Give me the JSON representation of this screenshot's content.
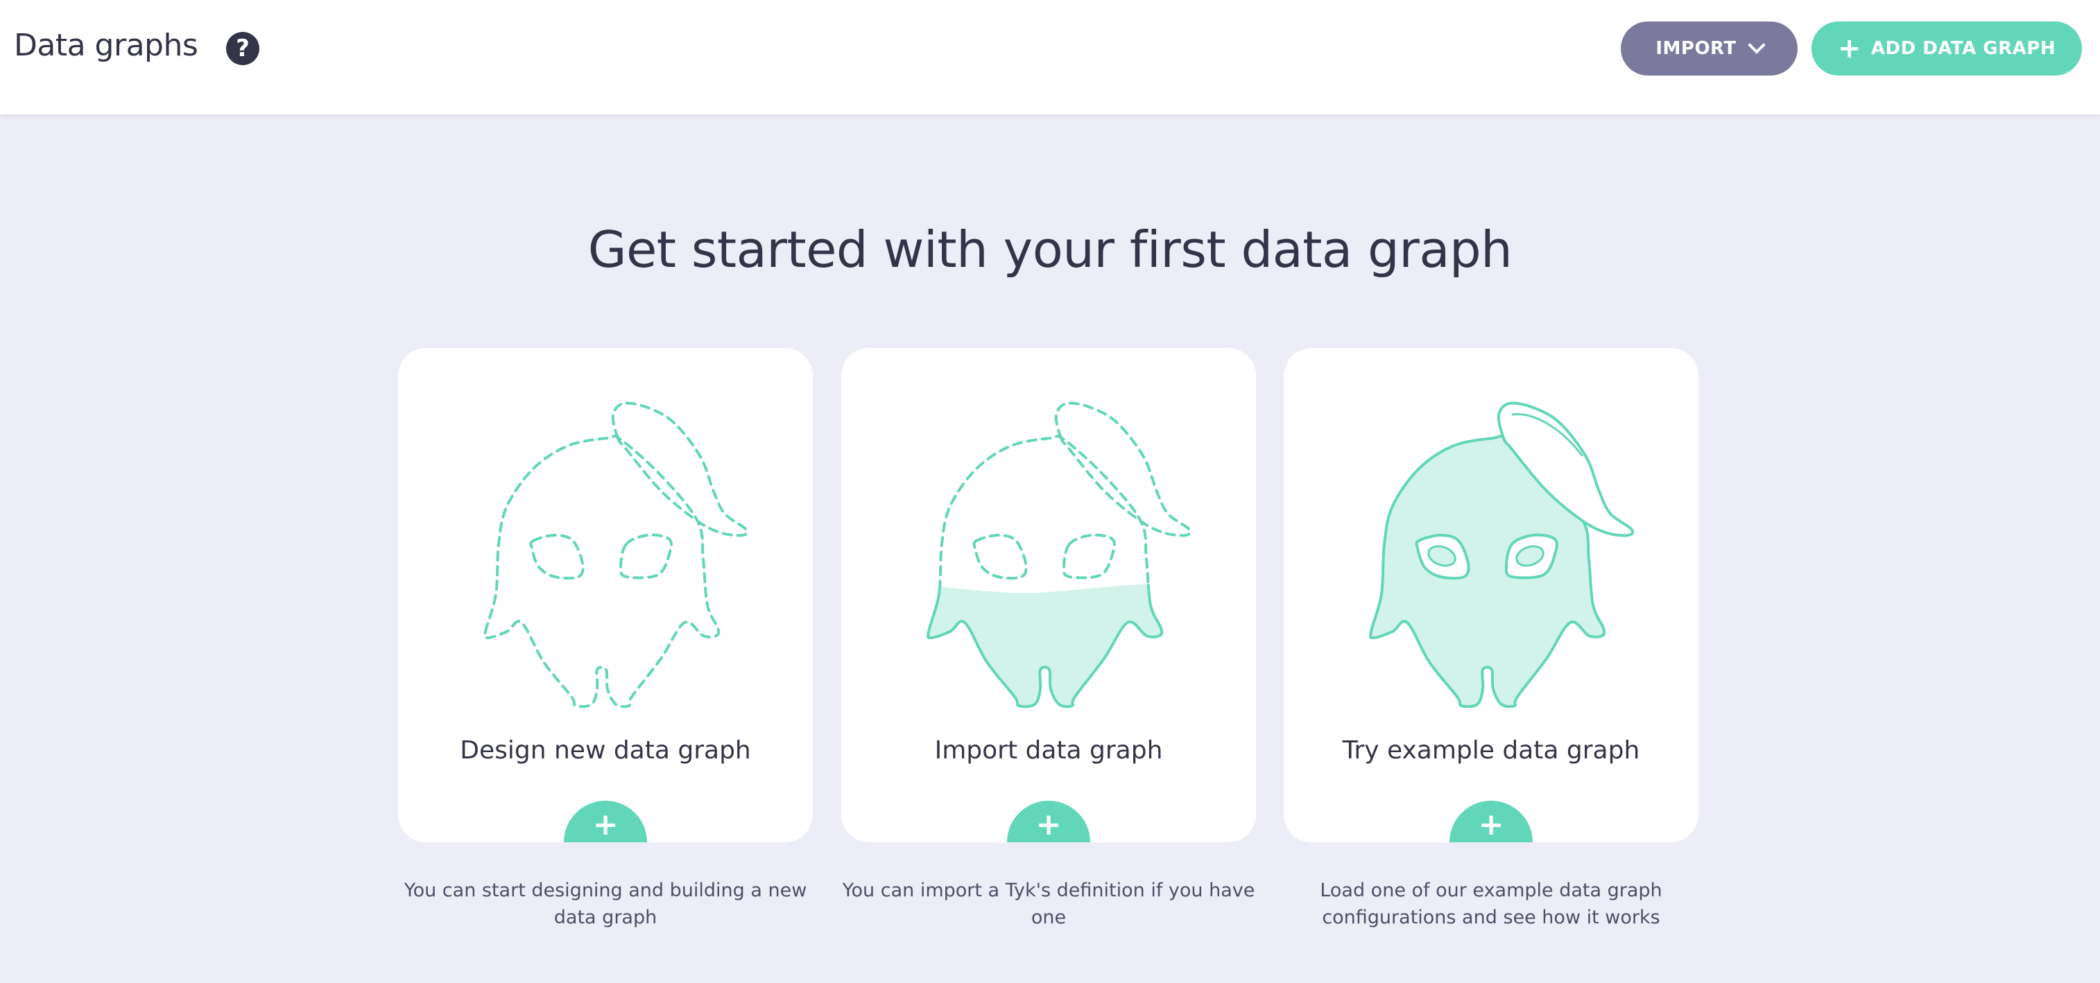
{
  "header": {
    "title": "Data graphs",
    "help_icon": "?",
    "import_label": "IMPORT",
    "add_label": "ADD DATA GRAPH",
    "add_icon": "+"
  },
  "main": {
    "headline": "Get started with your first data graph",
    "cards": [
      {
        "title": "Design new data graph",
        "plus": "+",
        "description": "You can start designing and building a new data graph",
        "illustration": "dashed-outline"
      },
      {
        "title": "Import data graph",
        "plus": "+",
        "description": "You can import a Tyk's definition if you have one",
        "illustration": "half-filled"
      },
      {
        "title": "Try example data graph",
        "plus": "+",
        "description": "Load one of our example data graph configurations and see how it works",
        "illustration": "filled"
      }
    ]
  },
  "colors": {
    "accent": "#62d6b8",
    "import": "#7b7a9e",
    "background": "#ededf8",
    "text": "#343449",
    "fill_light": "#d1f3ea"
  }
}
